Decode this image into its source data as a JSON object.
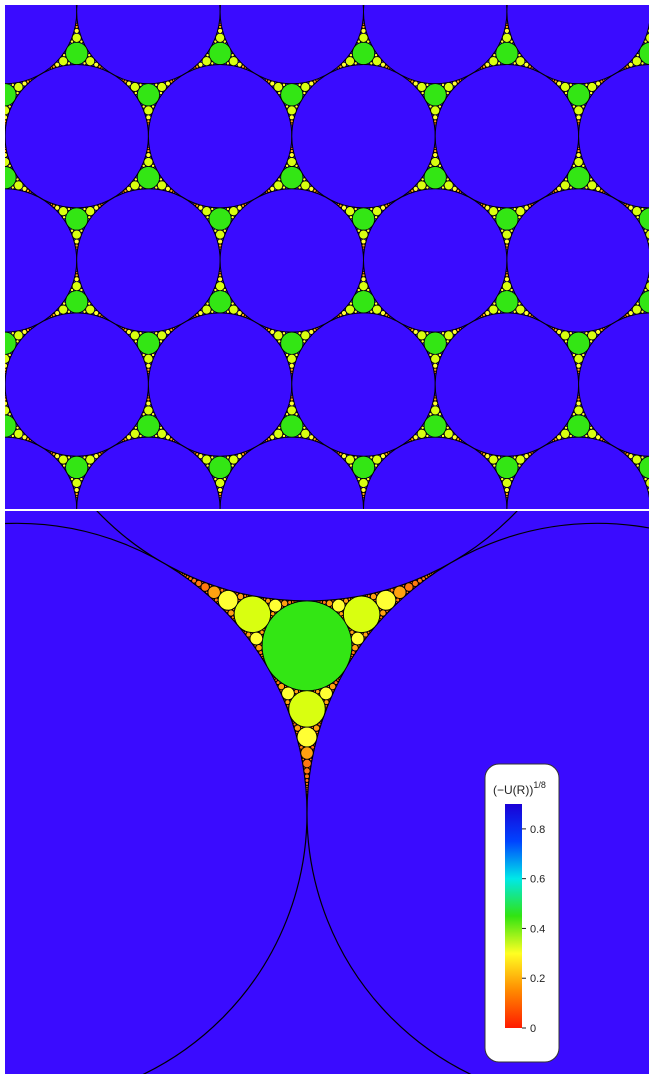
{
  "colorbar": {
    "title_base": "(−U(R))",
    "title_exponent": "1/8",
    "ticks": [
      "0",
      "0.2",
      "0.4",
      "0.6",
      "0.8"
    ],
    "range": [
      0,
      0.9
    ],
    "colors": [
      "#ff1a00",
      "#ff8a00",
      "#ffff22",
      "#31e411",
      "#00e8e8",
      "#0044ff",
      "#1a00d6"
    ]
  },
  "colors": {
    "background": "#3a0bff",
    "level1": "#33e614",
    "level2": "#d9ff10",
    "level3": "#ffff33",
    "level4": "#ffa110",
    "level5": "#ff7710",
    "edge": "#000000",
    "separator": "#ffffff"
  }
}
